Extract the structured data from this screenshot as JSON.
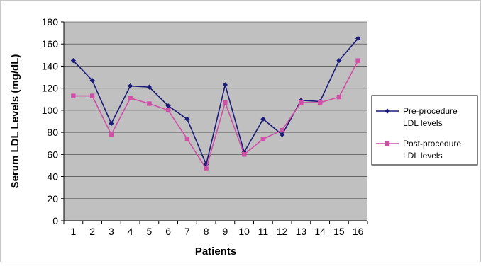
{
  "chart_data": {
    "type": "line",
    "title": "",
    "xlabel": "Patients",
    "ylabel": "Serum LDL Levels (mg/dL)",
    "x": [
      1,
      2,
      3,
      4,
      5,
      6,
      7,
      8,
      9,
      10,
      11,
      12,
      13,
      14,
      15,
      16
    ],
    "ylim": [
      0,
      180
    ],
    "yticks": [
      0,
      20,
      40,
      60,
      80,
      100,
      120,
      140,
      160,
      180
    ],
    "grid": true,
    "plot_background": "#c0c0c0",
    "legend_position": "right",
    "series": [
      {
        "name_lines": [
          "Pre-procedure",
          "LDL levels"
        ],
        "color": "#1a1a7a",
        "marker": "diamond",
        "values": [
          145,
          127,
          88,
          122,
          121,
          104,
          92,
          51,
          123,
          62,
          92,
          78,
          109,
          108,
          145,
          165
        ]
      },
      {
        "name_lines": [
          "Post-procedure",
          "LDL levels"
        ],
        "color": "#d050a8",
        "marker": "square",
        "values": [
          113,
          113,
          78,
          111,
          106,
          100,
          74,
          47,
          107,
          60,
          74,
          82,
          107,
          107,
          112,
          145
        ]
      }
    ]
  }
}
